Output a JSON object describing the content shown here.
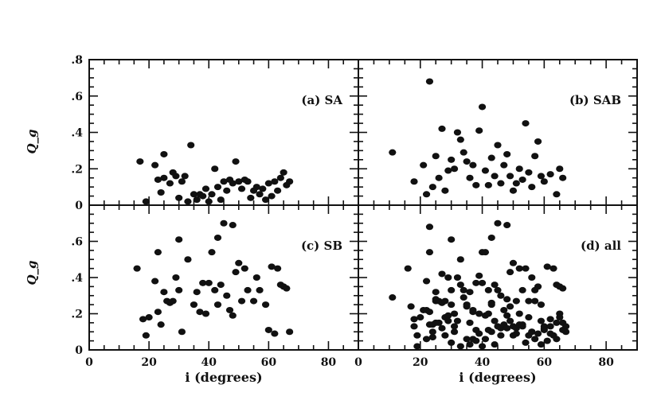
{
  "chart_data": [
    {
      "type": "scatter",
      "panel_label": "(a) SA",
      "ylabel": "Q_g",
      "xlabel": "",
      "xlim": [
        0,
        90
      ],
      "ylim": [
        0,
        0.8
      ],
      "x_ticks": [],
      "y_ticks": [
        ".8",
        ".6",
        ".4",
        ".2",
        "0"
      ],
      "points": [
        {
          "x": 17,
          "y": 0.24
        },
        {
          "x": 19,
          "y": 0.02
        },
        {
          "x": 22,
          "y": 0.22
        },
        {
          "x": 23,
          "y": 0.14
        },
        {
          "x": 24,
          "y": 0.07
        },
        {
          "x": 25,
          "y": 0.15
        },
        {
          "x": 25,
          "y": 0.28
        },
        {
          "x": 27,
          "y": 0.12
        },
        {
          "x": 28,
          "y": 0.18
        },
        {
          "x": 29,
          "y": 0.16
        },
        {
          "x": 30,
          "y": 0.04
        },
        {
          "x": 31,
          "y": 0.13
        },
        {
          "x": 32,
          "y": 0.16
        },
        {
          "x": 33,
          "y": 0.02
        },
        {
          "x": 34,
          "y": 0.33
        },
        {
          "x": 35,
          "y": 0.06
        },
        {
          "x": 36,
          "y": 0.03
        },
        {
          "x": 37,
          "y": 0.06
        },
        {
          "x": 38,
          "y": 0.05
        },
        {
          "x": 39,
          "y": 0.09
        },
        {
          "x": 40,
          "y": 0.02
        },
        {
          "x": 41,
          "y": 0.06
        },
        {
          "x": 42,
          "y": 0.2
        },
        {
          "x": 43,
          "y": 0.1
        },
        {
          "x": 44,
          "y": 0.03
        },
        {
          "x": 45,
          "y": 0.13
        },
        {
          "x": 46,
          "y": 0.08
        },
        {
          "x": 47,
          "y": 0.14
        },
        {
          "x": 48,
          "y": 0.12
        },
        {
          "x": 49,
          "y": 0.24
        },
        {
          "x": 50,
          "y": 0.13
        },
        {
          "x": 51,
          "y": 0.09
        },
        {
          "x": 52,
          "y": 0.14
        },
        {
          "x": 53,
          "y": 0.13
        },
        {
          "x": 54,
          "y": 0.04
        },
        {
          "x": 55,
          "y": 0.08
        },
        {
          "x": 56,
          "y": 0.1
        },
        {
          "x": 57,
          "y": 0.06
        },
        {
          "x": 58,
          "y": 0.09
        },
        {
          "x": 59,
          "y": 0.03
        },
        {
          "x": 60,
          "y": 0.12
        },
        {
          "x": 61,
          "y": 0.05
        },
        {
          "x": 62,
          "y": 0.13
        },
        {
          "x": 63,
          "y": 0.08
        },
        {
          "x": 64,
          "y": 0.15
        },
        {
          "x": 65,
          "y": 0.18
        },
        {
          "x": 66,
          "y": 0.11
        },
        {
          "x": 67,
          "y": 0.13
        }
      ]
    },
    {
      "type": "scatter",
      "panel_label": "(b) SAB",
      "ylabel": "",
      "xlabel": "",
      "xlim": [
        0,
        90
      ],
      "ylim": [
        0,
        0.8
      ],
      "x_ticks": [],
      "y_ticks": [],
      "points": [
        {
          "x": 11,
          "y": 0.29
        },
        {
          "x": 18,
          "y": 0.13
        },
        {
          "x": 21,
          "y": 0.22
        },
        {
          "x": 22,
          "y": 0.06
        },
        {
          "x": 23,
          "y": 0.68
        },
        {
          "x": 24,
          "y": 0.1
        },
        {
          "x": 25,
          "y": 0.27
        },
        {
          "x": 26,
          "y": 0.15
        },
        {
          "x": 27,
          "y": 0.42
        },
        {
          "x": 28,
          "y": 0.08
        },
        {
          "x": 29,
          "y": 0.19
        },
        {
          "x": 30,
          "y": 0.25
        },
        {
          "x": 31,
          "y": 0.2
        },
        {
          "x": 32,
          "y": 0.4
        },
        {
          "x": 33,
          "y": 0.36
        },
        {
          "x": 34,
          "y": 0.29
        },
        {
          "x": 35,
          "y": 0.24
        },
        {
          "x": 36,
          "y": 0.15
        },
        {
          "x": 37,
          "y": 0.22
        },
        {
          "x": 38,
          "y": 0.11
        },
        {
          "x": 39,
          "y": 0.41
        },
        {
          "x": 40,
          "y": 0.54
        },
        {
          "x": 41,
          "y": 0.19
        },
        {
          "x": 42,
          "y": 0.11
        },
        {
          "x": 43,
          "y": 0.26
        },
        {
          "x": 44,
          "y": 0.16
        },
        {
          "x": 45,
          "y": 0.33
        },
        {
          "x": 46,
          "y": 0.12
        },
        {
          "x": 47,
          "y": 0.22
        },
        {
          "x": 48,
          "y": 0.28
        },
        {
          "x": 49,
          "y": 0.16
        },
        {
          "x": 50,
          "y": 0.08
        },
        {
          "x": 51,
          "y": 0.12
        },
        {
          "x": 52,
          "y": 0.2
        },
        {
          "x": 53,
          "y": 0.14
        },
        {
          "x": 54,
          "y": 0.45
        },
        {
          "x": 55,
          "y": 0.18
        },
        {
          "x": 56,
          "y": 0.1
        },
        {
          "x": 57,
          "y": 0.27
        },
        {
          "x": 58,
          "y": 0.35
        },
        {
          "x": 59,
          "y": 0.16
        },
        {
          "x": 60,
          "y": 0.13
        },
        {
          "x": 62,
          "y": 0.17
        },
        {
          "x": 64,
          "y": 0.06
        },
        {
          "x": 65,
          "y": 0.2
        },
        {
          "x": 66,
          "y": 0.15
        }
      ]
    },
    {
      "type": "scatter",
      "panel_label": "(c) SB",
      "ylabel": "Q_g",
      "xlabel": "i (degrees)",
      "xlim": [
        0,
        90
      ],
      "ylim": [
        0,
        0.8
      ],
      "x_ticks": [
        "0",
        "20",
        "40",
        "60",
        "80"
      ],
      "y_ticks": [
        ".6",
        ".4",
        ".2",
        "0"
      ],
      "points": [
        {
          "x": 16,
          "y": 0.45
        },
        {
          "x": 18,
          "y": 0.17
        },
        {
          "x": 19,
          "y": 0.08
        },
        {
          "x": 20,
          "y": 0.18
        },
        {
          "x": 22,
          "y": 0.38
        },
        {
          "x": 23,
          "y": 0.54
        },
        {
          "x": 23,
          "y": 0.21
        },
        {
          "x": 24,
          "y": 0.14
        },
        {
          "x": 25,
          "y": 0.32
        },
        {
          "x": 26,
          "y": 0.27
        },
        {
          "x": 27,
          "y": 0.26
        },
        {
          "x": 28,
          "y": 0.27
        },
        {
          "x": 29,
          "y": 0.4
        },
        {
          "x": 30,
          "y": 0.61
        },
        {
          "x": 30,
          "y": 0.33
        },
        {
          "x": 31,
          "y": 0.1
        },
        {
          "x": 33,
          "y": 0.5
        },
        {
          "x": 35,
          "y": 0.25
        },
        {
          "x": 36,
          "y": 0.32
        },
        {
          "x": 37,
          "y": 0.21
        },
        {
          "x": 38,
          "y": 0.37
        },
        {
          "x": 39,
          "y": 0.2
        },
        {
          "x": 40,
          "y": 0.37
        },
        {
          "x": 41,
          "y": 0.54
        },
        {
          "x": 42,
          "y": 0.33
        },
        {
          "x": 43,
          "y": 0.25
        },
        {
          "x": 43,
          "y": 0.62
        },
        {
          "x": 44,
          "y": 0.36
        },
        {
          "x": 45,
          "y": 0.7
        },
        {
          "x": 46,
          "y": 0.3
        },
        {
          "x": 47,
          "y": 0.22
        },
        {
          "x": 48,
          "y": 0.19
        },
        {
          "x": 48,
          "y": 0.69
        },
        {
          "x": 49,
          "y": 0.43
        },
        {
          "x": 50,
          "y": 0.48
        },
        {
          "x": 51,
          "y": 0.27
        },
        {
          "x": 52,
          "y": 0.45
        },
        {
          "x": 53,
          "y": 0.33
        },
        {
          "x": 55,
          "y": 0.27
        },
        {
          "x": 56,
          "y": 0.4
        },
        {
          "x": 57,
          "y": 0.33
        },
        {
          "x": 59,
          "y": 0.25
        },
        {
          "x": 60,
          "y": 0.11
        },
        {
          "x": 61,
          "y": 0.46
        },
        {
          "x": 62,
          "y": 0.09
        },
        {
          "x": 63,
          "y": 0.45
        },
        {
          "x": 64,
          "y": 0.36
        },
        {
          "x": 65,
          "y": 0.35
        },
        {
          "x": 66,
          "y": 0.34
        },
        {
          "x": 67,
          "y": 0.1
        }
      ]
    },
    {
      "type": "scatter",
      "panel_label": "(d) all",
      "ylabel": "",
      "xlabel": "i (degrees)",
      "xlim": [
        0,
        90
      ],
      "ylim": [
        0,
        0.8
      ],
      "x_ticks": [
        "0",
        "20",
        "40",
        "60",
        "80"
      ],
      "y_ticks": [],
      "points": [
        {
          "x": 11,
          "y": 0.29
        },
        {
          "x": 16,
          "y": 0.45
        },
        {
          "x": 17,
          "y": 0.24
        },
        {
          "x": 18,
          "y": 0.13
        },
        {
          "x": 18,
          "y": 0.17
        },
        {
          "x": 19,
          "y": 0.02
        },
        {
          "x": 19,
          "y": 0.08
        },
        {
          "x": 20,
          "y": 0.18
        },
        {
          "x": 21,
          "y": 0.22
        },
        {
          "x": 22,
          "y": 0.06
        },
        {
          "x": 22,
          "y": 0.38
        },
        {
          "x": 22,
          "y": 0.22
        },
        {
          "x": 23,
          "y": 0.68
        },
        {
          "x": 23,
          "y": 0.54
        },
        {
          "x": 23,
          "y": 0.21
        },
        {
          "x": 23,
          "y": 0.14
        },
        {
          "x": 24,
          "y": 0.1
        },
        {
          "x": 24,
          "y": 0.07
        },
        {
          "x": 24,
          "y": 0.14
        },
        {
          "x": 25,
          "y": 0.27
        },
        {
          "x": 25,
          "y": 0.32
        },
        {
          "x": 25,
          "y": 0.15
        },
        {
          "x": 25,
          "y": 0.28
        },
        {
          "x": 26,
          "y": 0.15
        },
        {
          "x": 26,
          "y": 0.27
        },
        {
          "x": 27,
          "y": 0.42
        },
        {
          "x": 27,
          "y": 0.26
        },
        {
          "x": 27,
          "y": 0.12
        },
        {
          "x": 28,
          "y": 0.08
        },
        {
          "x": 28,
          "y": 0.27
        },
        {
          "x": 28,
          "y": 0.18
        },
        {
          "x": 29,
          "y": 0.19
        },
        {
          "x": 29,
          "y": 0.4
        },
        {
          "x": 29,
          "y": 0.16
        },
        {
          "x": 30,
          "y": 0.25
        },
        {
          "x": 30,
          "y": 0.61
        },
        {
          "x": 30,
          "y": 0.33
        },
        {
          "x": 30,
          "y": 0.04
        },
        {
          "x": 31,
          "y": 0.2
        },
        {
          "x": 31,
          "y": 0.1
        },
        {
          "x": 31,
          "y": 0.13
        },
        {
          "x": 32,
          "y": 0.4
        },
        {
          "x": 32,
          "y": 0.16
        },
        {
          "x": 33,
          "y": 0.36
        },
        {
          "x": 33,
          "y": 0.5
        },
        {
          "x": 33,
          "y": 0.02
        },
        {
          "x": 34,
          "y": 0.29
        },
        {
          "x": 34,
          "y": 0.33
        },
        {
          "x": 35,
          "y": 0.24
        },
        {
          "x": 35,
          "y": 0.25
        },
        {
          "x": 35,
          "y": 0.06
        },
        {
          "x": 36,
          "y": 0.15
        },
        {
          "x": 36,
          "y": 0.32
        },
        {
          "x": 36,
          "y": 0.03
        },
        {
          "x": 37,
          "y": 0.22
        },
        {
          "x": 37,
          "y": 0.21
        },
        {
          "x": 37,
          "y": 0.06
        },
        {
          "x": 38,
          "y": 0.11
        },
        {
          "x": 38,
          "y": 0.37
        },
        {
          "x": 38,
          "y": 0.05
        },
        {
          "x": 39,
          "y": 0.41
        },
        {
          "x": 39,
          "y": 0.2
        },
        {
          "x": 39,
          "y": 0.09
        },
        {
          "x": 40,
          "y": 0.54
        },
        {
          "x": 40,
          "y": 0.37
        },
        {
          "x": 40,
          "y": 0.02
        },
        {
          "x": 41,
          "y": 0.19
        },
        {
          "x": 41,
          "y": 0.54
        },
        {
          "x": 41,
          "y": 0.06
        },
        {
          "x": 42,
          "y": 0.11
        },
        {
          "x": 42,
          "y": 0.33
        },
        {
          "x": 42,
          "y": 0.2
        },
        {
          "x": 43,
          "y": 0.26
        },
        {
          "x": 43,
          "y": 0.25
        },
        {
          "x": 43,
          "y": 0.62
        },
        {
          "x": 43,
          "y": 0.1
        },
        {
          "x": 44,
          "y": 0.16
        },
        {
          "x": 44,
          "y": 0.36
        },
        {
          "x": 44,
          "y": 0.03
        },
        {
          "x": 45,
          "y": 0.33
        },
        {
          "x": 45,
          "y": 0.7
        },
        {
          "x": 45,
          "y": 0.13
        },
        {
          "x": 46,
          "y": 0.12
        },
        {
          "x": 46,
          "y": 0.3
        },
        {
          "x": 46,
          "y": 0.08
        },
        {
          "x": 47,
          "y": 0.22
        },
        {
          "x": 47,
          "y": 0.14
        },
        {
          "x": 48,
          "y": 0.28
        },
        {
          "x": 48,
          "y": 0.19
        },
        {
          "x": 48,
          "y": 0.69
        },
        {
          "x": 48,
          "y": 0.12
        },
        {
          "x": 49,
          "y": 0.16
        },
        {
          "x": 49,
          "y": 0.43
        },
        {
          "x": 49,
          "y": 0.24
        },
        {
          "x": 50,
          "y": 0.08
        },
        {
          "x": 50,
          "y": 0.48
        },
        {
          "x": 50,
          "y": 0.13
        },
        {
          "x": 51,
          "y": 0.12
        },
        {
          "x": 51,
          "y": 0.27
        },
        {
          "x": 51,
          "y": 0.09
        },
        {
          "x": 52,
          "y": 0.2
        },
        {
          "x": 52,
          "y": 0.45
        },
        {
          "x": 52,
          "y": 0.14
        },
        {
          "x": 53,
          "y": 0.14
        },
        {
          "x": 53,
          "y": 0.33
        },
        {
          "x": 53,
          "y": 0.13
        },
        {
          "x": 54,
          "y": 0.45
        },
        {
          "x": 54,
          "y": 0.04
        },
        {
          "x": 55,
          "y": 0.18
        },
        {
          "x": 55,
          "y": 0.27
        },
        {
          "x": 55,
          "y": 0.08
        },
        {
          "x": 56,
          "y": 0.1
        },
        {
          "x": 56,
          "y": 0.4
        },
        {
          "x": 56,
          "y": 0.1
        },
        {
          "x": 57,
          "y": 0.27
        },
        {
          "x": 57,
          "y": 0.33
        },
        {
          "x": 57,
          "y": 0.06
        },
        {
          "x": 58,
          "y": 0.35
        },
        {
          "x": 58,
          "y": 0.09
        },
        {
          "x": 59,
          "y": 0.16
        },
        {
          "x": 59,
          "y": 0.25
        },
        {
          "x": 59,
          "y": 0.03
        },
        {
          "x": 60,
          "y": 0.13
        },
        {
          "x": 60,
          "y": 0.11
        },
        {
          "x": 60,
          "y": 0.12
        },
        {
          "x": 61,
          "y": 0.46
        },
        {
          "x": 61,
          "y": 0.05
        },
        {
          "x": 62,
          "y": 0.17
        },
        {
          "x": 62,
          "y": 0.09
        },
        {
          "x": 62,
          "y": 0.13
        },
        {
          "x": 63,
          "y": 0.45
        },
        {
          "x": 63,
          "y": 0.08
        },
        {
          "x": 64,
          "y": 0.06
        },
        {
          "x": 64,
          "y": 0.36
        },
        {
          "x": 64,
          "y": 0.15
        },
        {
          "x": 65,
          "y": 0.2
        },
        {
          "x": 65,
          "y": 0.35
        },
        {
          "x": 65,
          "y": 0.18
        },
        {
          "x": 66,
          "y": 0.15
        },
        {
          "x": 66,
          "y": 0.34
        },
        {
          "x": 66,
          "y": 0.11
        },
        {
          "x": 67,
          "y": 0.1
        },
        {
          "x": 67,
          "y": 0.13
        }
      ]
    }
  ],
  "colors": {
    "marker": "#111111",
    "axis": "#111111",
    "background": "#ffffff"
  }
}
